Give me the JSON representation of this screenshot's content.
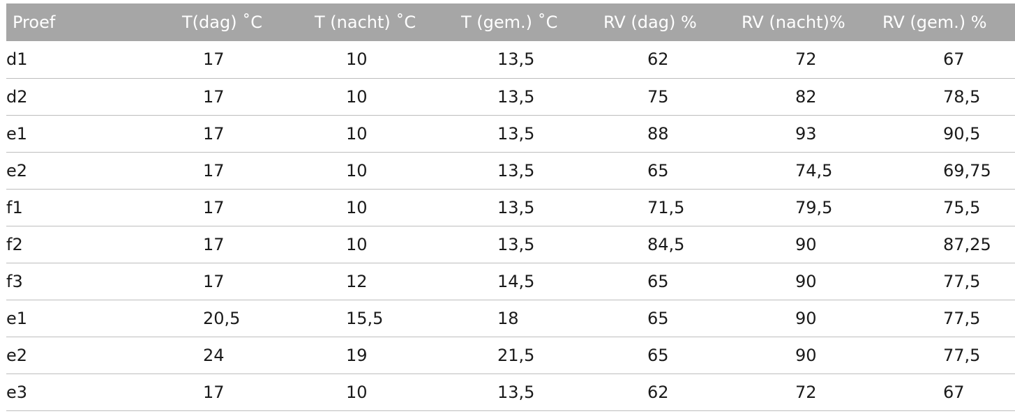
{
  "table": {
    "headers": [
      "Proef",
      "T(dag) ˚C",
      "T (nacht) ˚C",
      "T (gem.) ˚C",
      "RV (dag) %",
      "RV (nacht)%",
      "RV (gem.) %"
    ],
    "rows": [
      [
        "d1",
        "17",
        "10",
        "13,5",
        "62",
        "72",
        "67"
      ],
      [
        "d2",
        "17",
        "10",
        "13,5",
        "75",
        "82",
        "78,5"
      ],
      [
        "e1",
        "17",
        "10",
        "13,5",
        "88",
        "93",
        "90,5"
      ],
      [
        "e2",
        "17",
        "10",
        "13,5",
        "65",
        "74,5",
        "69,75"
      ],
      [
        "f1",
        "17",
        "10",
        "13,5",
        "71,5",
        "79,5",
        "75,5"
      ],
      [
        "f2",
        "17",
        "10",
        "13,5",
        "84,5",
        "90",
        "87,25"
      ],
      [
        "f3",
        "17",
        "12",
        "14,5",
        "65",
        "90",
        "77,5"
      ],
      [
        "e1",
        "20,5",
        "15,5",
        "18",
        "65",
        "90",
        "77,5"
      ],
      [
        "e2",
        "24",
        "19",
        "21,5",
        "65",
        "90",
        "77,5"
      ],
      [
        "e3",
        "17",
        "10",
        "13,5",
        "62",
        "72",
        "67"
      ]
    ]
  },
  "colors": {
    "header_bg": "#a6a6a6",
    "header_text": "#ffffff",
    "row_divider": "#bdbdbd",
    "body_text": "#1a1a1a"
  }
}
